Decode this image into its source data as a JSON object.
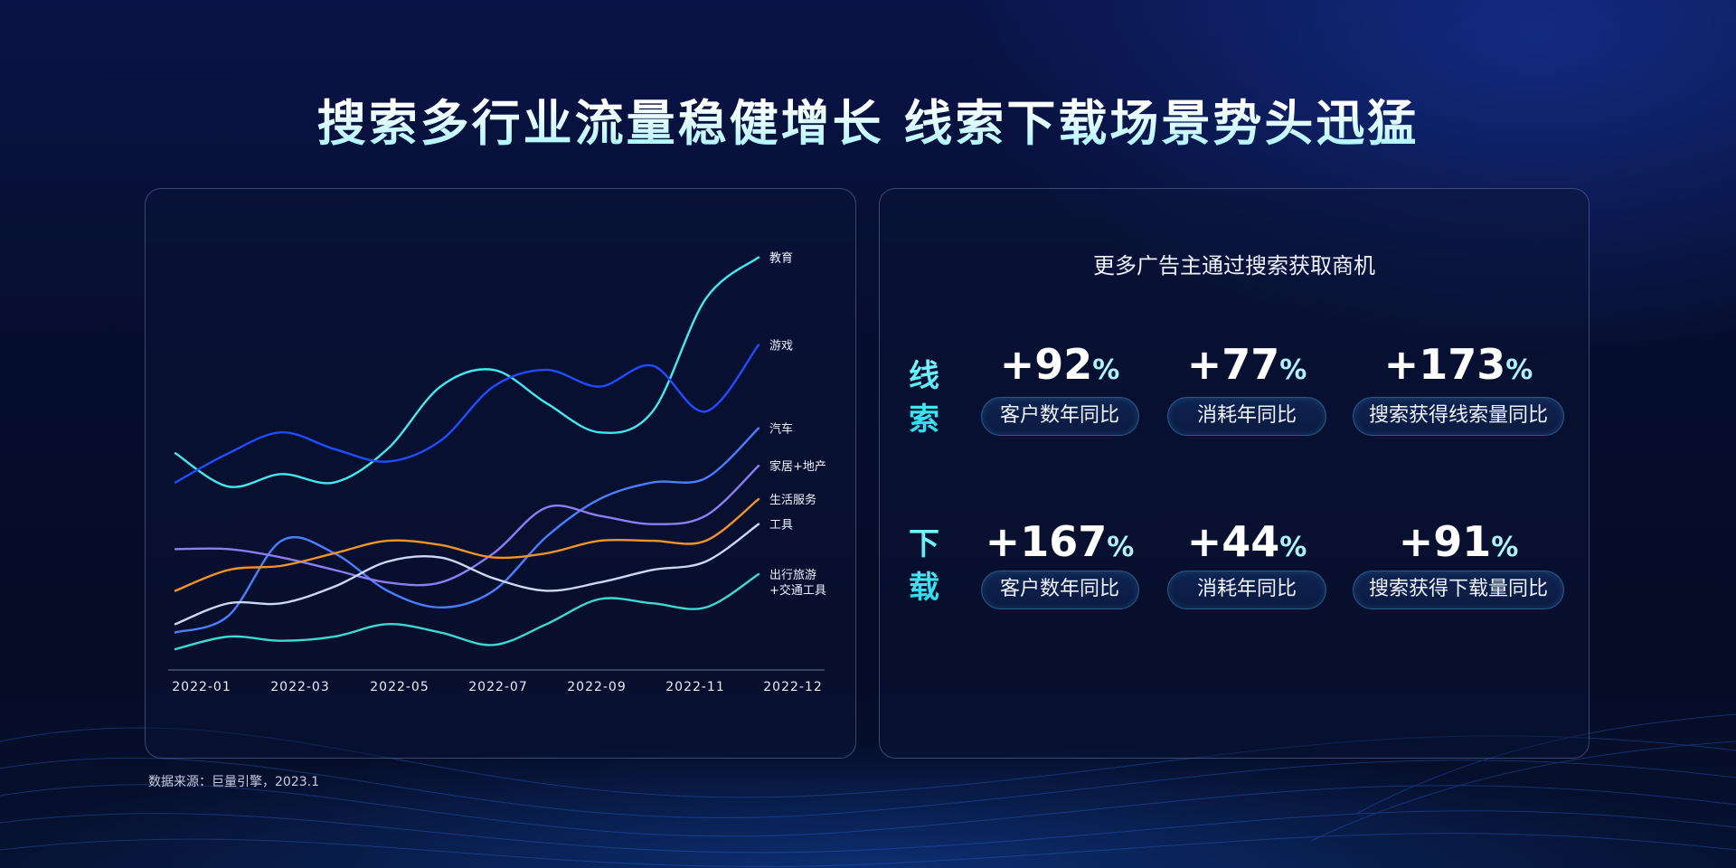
{
  "title": "搜索多行业流量稳健增长  线索下载场景势头迅猛",
  "source": "数据来源：巨量引擎，2023.1",
  "chart_data": {
    "type": "line",
    "title": "",
    "xlabel": "",
    "ylabel": "",
    "x": [
      "2022-01",
      "2022-02",
      "2022-03",
      "2022-04",
      "2022-05",
      "2022-06",
      "2022-07",
      "2022-08",
      "2022-09",
      "2022-10",
      "2022-11",
      "2022-12"
    ],
    "tick_labels": [
      "2022-01",
      "2022-03",
      "2022-05",
      "2022-07",
      "2022-09",
      "2022-11",
      "2022-12"
    ],
    "ylim": [
      0,
      100
    ],
    "y_axis_shown": false,
    "grid": false,
    "legend": "line-end labels",
    "series": [
      {
        "name": "教育",
        "color": "#45e6ec",
        "values": [
          52,
          44,
          47,
          45,
          53,
          68,
          72,
          64,
          57,
          62,
          89,
          99
        ]
      },
      {
        "name": "游戏",
        "color": "#1f4dff",
        "values": [
          45,
          52,
          57,
          53,
          50,
          55,
          68,
          72,
          68,
          73,
          62,
          78
        ]
      },
      {
        "name": "汽车",
        "color": "#4a7fff",
        "values": [
          9,
          13,
          31,
          28,
          19,
          15,
          19,
          32,
          41,
          45,
          46,
          58
        ]
      },
      {
        "name": "家居+地产",
        "color": "#8a7ef2",
        "values": [
          29,
          29,
          27,
          24,
          21,
          21,
          28,
          39,
          37,
          35,
          37,
          49
        ]
      },
      {
        "name": "生活服务",
        "color": "#f0952a",
        "values": [
          19,
          24,
          25,
          28,
          31,
          30,
          27,
          28,
          31,
          31,
          31,
          41
        ]
      },
      {
        "name": "工具",
        "color": "#cbd9f2",
        "values": [
          11,
          16,
          16,
          20,
          26,
          27,
          22,
          19,
          21,
          24,
          26,
          35
        ]
      },
      {
        "name": "出行旅游\n+交通工具",
        "label_lines": [
          "出行旅游",
          "+交通工具"
        ],
        "color": "#3fd8d0",
        "values": [
          5,
          8,
          7,
          8,
          11,
          9,
          6,
          11,
          17,
          16,
          15,
          23
        ]
      }
    ]
  },
  "right": {
    "subtitle": "更多广告主通过搜索获取商机",
    "rows": [
      {
        "label": "线索",
        "stats": [
          {
            "value": "+92",
            "unit": "%",
            "label": "客户数年同比"
          },
          {
            "value": "+77",
            "unit": "%",
            "label": "消耗年同比"
          },
          {
            "value": "+173",
            "unit": "%",
            "label": "搜索获得线索量同比"
          }
        ]
      },
      {
        "label": "下载",
        "stats": [
          {
            "value": "+167",
            "unit": "%",
            "label": "客户数年同比"
          },
          {
            "value": "+44",
            "unit": "%",
            "label": "消耗年同比"
          },
          {
            "value": "+91",
            "unit": "%",
            "label": "搜索获得下载量同比"
          }
        ]
      }
    ]
  }
}
